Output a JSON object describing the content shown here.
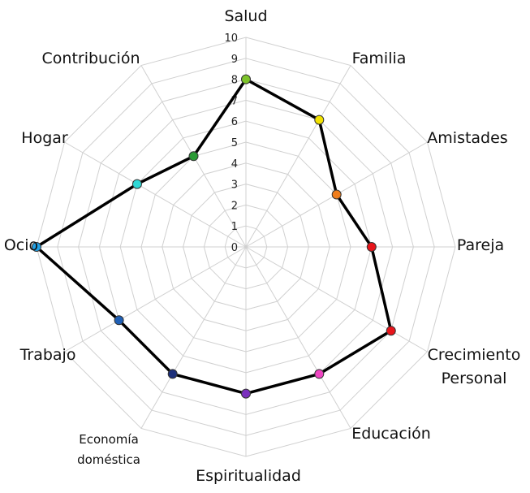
{
  "chart_data": {
    "type": "radar",
    "title": "",
    "categories": [
      {
        "label": [
          "Salud"
        ],
        "value": 8,
        "color": "#7dc42a"
      },
      {
        "label": [
          "Familia"
        ],
        "value": 7,
        "color": "#f2e200"
      },
      {
        "label": [
          "Amistades"
        ],
        "value": 5,
        "color": "#ef7d1c"
      },
      {
        "label": [
          "Pareja"
        ],
        "value": 6,
        "color": "#e8151b"
      },
      {
        "label": [
          "Crecimiento",
          "Personal"
        ],
        "value": 8,
        "color": "#e8151b"
      },
      {
        "label": [
          "Educación"
        ],
        "value": 7,
        "color": "#ef45c2"
      },
      {
        "label": [
          "Espiritualidad"
        ],
        "value": 7,
        "color": "#7a2fbd"
      },
      {
        "label": [
          "Economía",
          "doméstica"
        ],
        "value": 7,
        "color": "#1d2f7a"
      },
      {
        "label": [
          "Trabajo"
        ],
        "value": 7,
        "color": "#1f5fb5"
      },
      {
        "label": [
          "Ocio"
        ],
        "value": 10,
        "color": "#23a3e8"
      },
      {
        "label": [
          "Hogar"
        ],
        "value": 6,
        "color": "#2fd8d6"
      },
      {
        "label": [
          "Contribución"
        ],
        "value": 5,
        "color": "#2a9a35"
      }
    ],
    "rlim": [
      0,
      10
    ],
    "ticks": [
      "0",
      "1",
      "2",
      "3",
      "4",
      "5",
      "6",
      "7",
      "8",
      "9",
      "10"
    ],
    "grid": true,
    "line_color": "#000000",
    "grid_color": "#d0d0d0"
  }
}
